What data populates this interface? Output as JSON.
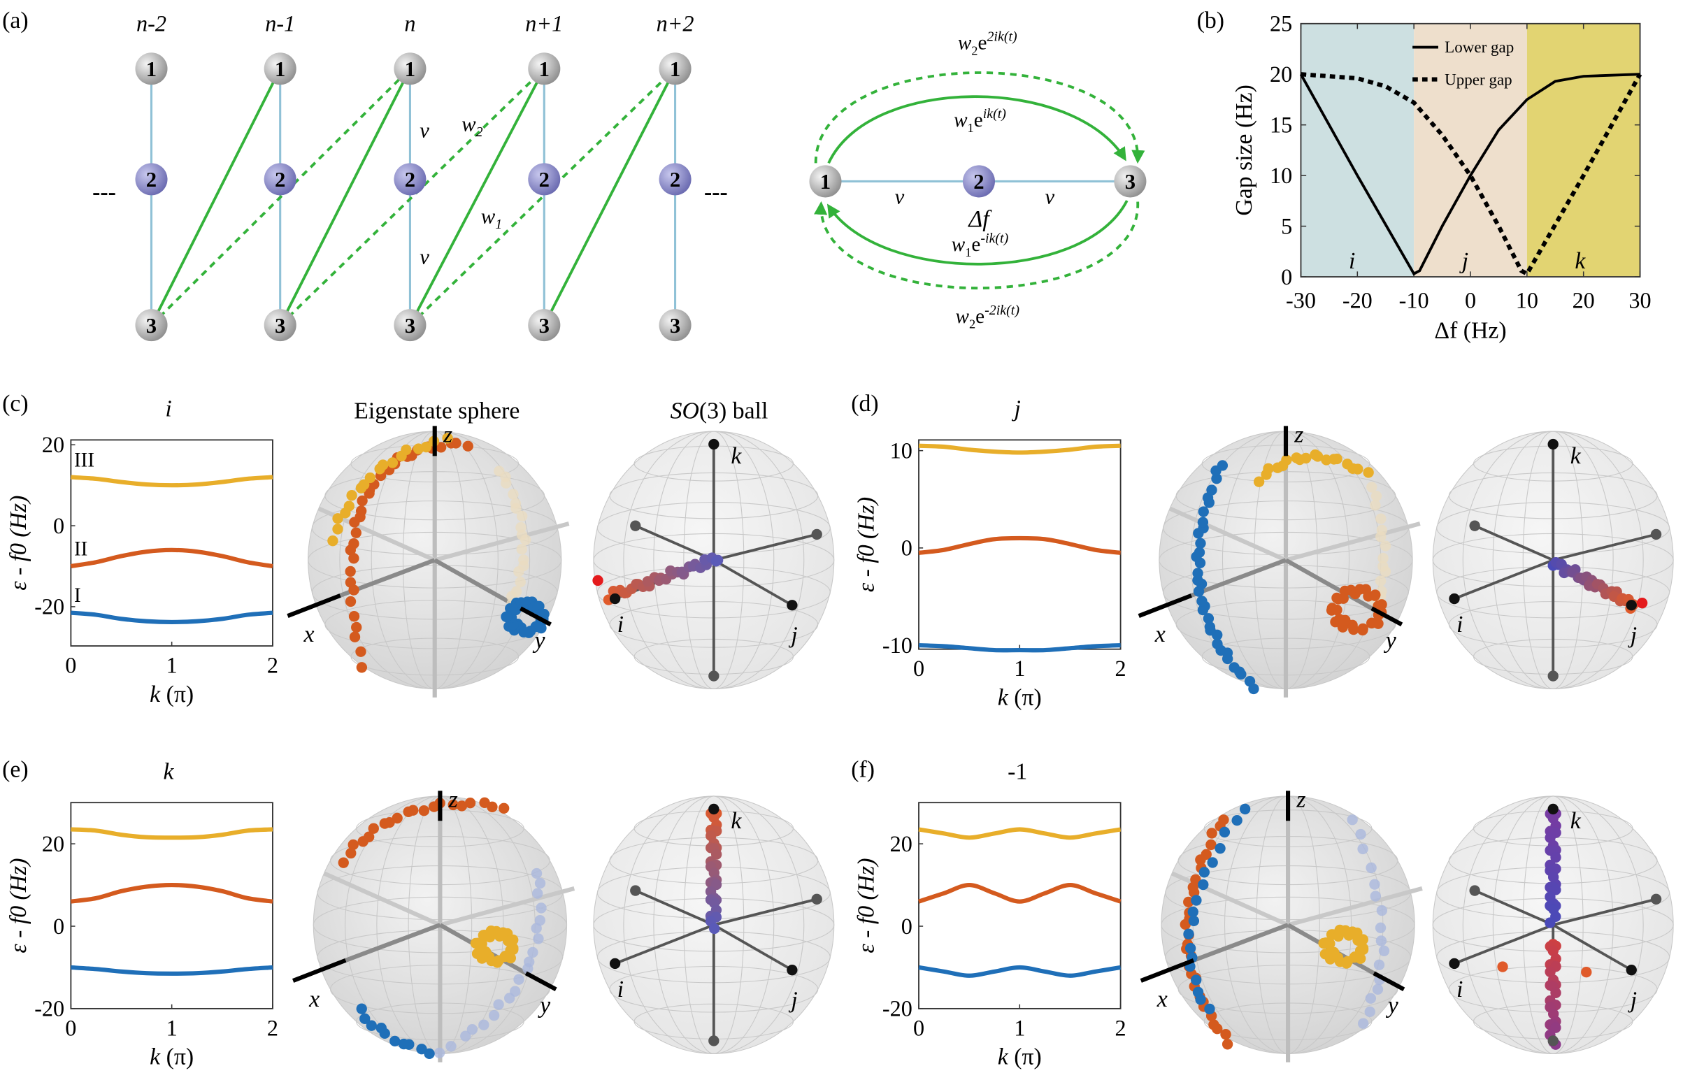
{
  "panel_labels": {
    "a": "(a)",
    "b": "(b)",
    "c": "(c)",
    "d": "(d)",
    "e": "(e)",
    "f": "(f)"
  },
  "lattice": {
    "columns": [
      "n-2",
      "n-1",
      "n",
      "n+1",
      "n+2"
    ],
    "node_labels": [
      "1",
      "2",
      "3"
    ],
    "ellipsis": "---",
    "v": "v",
    "w1": "w",
    "w1_sub": "1",
    "w2": "w",
    "w2_sub": "2"
  },
  "triangle": {
    "nodes": [
      "1",
      "2",
      "3"
    ],
    "v": "v",
    "df": "Δf",
    "top_dashed": {
      "w": "w",
      "sub": "2",
      "e": "e",
      "exp": "2ik(t)"
    },
    "top_solid": {
      "w": "w",
      "sub": "1",
      "e": "e",
      "exp": "ik(t)"
    },
    "bottom_solid": {
      "w": "w",
      "sub": "1",
      "e": "e",
      "exp": "-ik(t)"
    },
    "bottom_dashed": {
      "w": "w",
      "sub": "2",
      "e": "e",
      "exp": "-2ik(t)"
    }
  },
  "colors": {
    "link": "#8fc1d6",
    "green": "#33b23a",
    "node": "#b4b4b4",
    "node2": "#8b8bc9",
    "band_I": "#1f6fb8",
    "band_II": "#d45a1e",
    "band_III": "#e8ae2a",
    "region_i": "#cde0e1",
    "region_j": "#eedfcc",
    "region_k": "#e2d472"
  },
  "sphere_titles": {
    "eigen": "Eigenstate sphere",
    "so3_a": "SO",
    "so3_b": "(3) ball"
  },
  "sphere_axes": {
    "x": "x",
    "y": "y",
    "z": "z",
    "i": "i",
    "j": "j",
    "k": "k"
  },
  "chart_data": [
    {
      "panel": "b",
      "type": "line",
      "xlabel": "Δf (Hz)",
      "ylabel": "Gap size (Hz)",
      "xlim": [
        -30,
        30
      ],
      "ylim": [
        0,
        25
      ],
      "xticks": [
        -30,
        -20,
        -10,
        0,
        10,
        20,
        30
      ],
      "yticks": [
        0,
        5,
        10,
        15,
        20,
        25
      ],
      "regions": [
        {
          "label": "i",
          "range": [
            -30,
            -10
          ]
        },
        {
          "label": "j",
          "range": [
            -10,
            10
          ]
        },
        {
          "label": "k",
          "range": [
            10,
            30
          ]
        }
      ],
      "legend": "top-center",
      "series": [
        {
          "name": "Lower gap",
          "style": "solid",
          "x": [
            -30,
            -20,
            -10,
            -9,
            -5,
            0,
            5,
            10,
            15,
            20,
            30
          ],
          "y": [
            20,
            10,
            0.3,
            0.6,
            5,
            10,
            14.5,
            17.5,
            19.3,
            19.8,
            20
          ]
        },
        {
          "name": "Upper gap",
          "style": "dashed",
          "x": [
            -30,
            -20,
            -15,
            -10,
            -5,
            0,
            5,
            9,
            10,
            20,
            30
          ],
          "y": [
            20,
            19.6,
            18.8,
            17.2,
            14,
            10,
            5,
            0.6,
            0.3,
            10,
            20
          ]
        }
      ]
    },
    {
      "panel": "c",
      "type": "line",
      "title": "i",
      "xlabel": "k (π)",
      "ylabel": "ε - f0 (Hz)",
      "xlim": [
        0,
        2
      ],
      "ylim": [
        -29.7,
        21.2
      ],
      "xticks": [
        0,
        1,
        2
      ],
      "yticks": [
        -20,
        0,
        20
      ],
      "x": [
        0,
        0.25,
        0.5,
        0.75,
        1,
        1.25,
        1.5,
        1.75,
        2
      ],
      "series": [
        {
          "name": "III",
          "color": "#e8ae2a",
          "values": [
            12,
            11.6,
            10.8,
            10.2,
            10,
            10.2,
            10.8,
            11.6,
            12
          ]
        },
        {
          "name": "II",
          "color": "#d45a1e",
          "values": [
            -10,
            -9,
            -7.5,
            -6.4,
            -6,
            -6.4,
            -7.5,
            -9,
            -10
          ]
        },
        {
          "name": "I",
          "color": "#1f6fb8",
          "values": [
            -21.5,
            -22,
            -23,
            -23.6,
            -23.8,
            -23.6,
            -23,
            -22,
            -21.5
          ]
        }
      ]
    },
    {
      "panel": "d",
      "type": "line",
      "title": "j",
      "xlabel": "k (π)",
      "ylabel": "ε - f0 (Hz)",
      "xlim": [
        0,
        2
      ],
      "ylim": [
        -10.4,
        11.1
      ],
      "xticks": [
        0,
        1,
        2
      ],
      "yticks": [
        -10,
        0,
        10
      ],
      "x": [
        0,
        0.25,
        0.5,
        0.75,
        1,
        1.25,
        1.5,
        1.75,
        2
      ],
      "series": [
        {
          "color": "#e8ae2a",
          "values": [
            10.5,
            10.4,
            10.1,
            9.9,
            9.8,
            9.9,
            10.1,
            10.4,
            10.5
          ]
        },
        {
          "color": "#d45a1e",
          "values": [
            -0.5,
            -0.2,
            0.4,
            0.9,
            1,
            0.9,
            0.4,
            -0.2,
            -0.5
          ]
        },
        {
          "color": "#1f6fb8",
          "values": [
            -10,
            -10.1,
            -10.3,
            -10.5,
            -10.5,
            -10.5,
            -10.3,
            -10.1,
            -10
          ]
        }
      ]
    },
    {
      "panel": "e",
      "type": "line",
      "title": "k",
      "xlabel": "k (π)",
      "ylabel": "ε - f0 (Hz)",
      "xlim": [
        0,
        2
      ],
      "ylim": [
        -20,
        30
      ],
      "xticks": [
        0,
        1,
        2
      ],
      "yticks": [
        -20,
        0,
        20
      ],
      "x": [
        0,
        0.25,
        0.5,
        0.75,
        1,
        1.25,
        1.5,
        1.75,
        2
      ],
      "series": [
        {
          "color": "#e8ae2a",
          "values": [
            23.5,
            23.2,
            22.2,
            21.6,
            21.5,
            21.6,
            22.2,
            23.2,
            23.5
          ]
        },
        {
          "color": "#d45a1e",
          "values": [
            6,
            6.8,
            8.5,
            9.6,
            10,
            9.6,
            8.5,
            6.8,
            6
          ]
        },
        {
          "color": "#1f6fb8",
          "values": [
            -10,
            -10.4,
            -11,
            -11.4,
            -11.5,
            -11.4,
            -11,
            -10.4,
            -10
          ]
        }
      ]
    },
    {
      "panel": "f",
      "type": "line",
      "title": "-1",
      "xlabel": "k (π)",
      "ylabel": "ε - f0 (Hz)",
      "xlim": [
        0,
        2
      ],
      "ylim": [
        -20,
        30
      ],
      "xticks": [
        0,
        1,
        2
      ],
      "yticks": [
        -20,
        0,
        20
      ],
      "x": [
        0,
        0.25,
        0.5,
        0.75,
        1,
        1.25,
        1.5,
        1.75,
        2
      ],
      "series": [
        {
          "color": "#e8ae2a",
          "values": [
            23.5,
            22.5,
            21.5,
            22.5,
            23.5,
            22.5,
            21.5,
            22.5,
            23.5
          ]
        },
        {
          "color": "#d45a1e",
          "values": [
            6,
            8,
            10,
            8,
            6,
            8,
            10,
            8,
            6
          ]
        },
        {
          "color": "#1f6fb8",
          "values": [
            -10,
            -11,
            -12,
            -11,
            -10,
            -11,
            -12,
            -11,
            -10
          ]
        }
      ]
    }
  ]
}
